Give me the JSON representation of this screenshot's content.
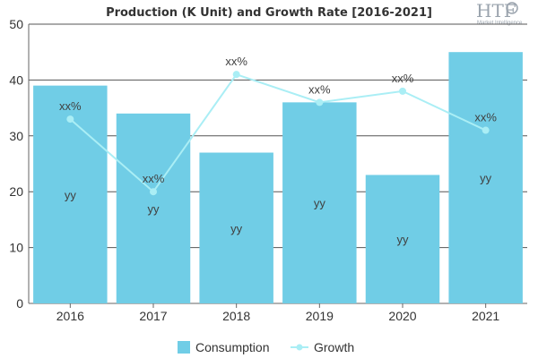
{
  "chart_data": {
    "type": "bar",
    "title": "Production (K Unit) and Growth Rate [2016-2021]",
    "categories": [
      "2016",
      "2017",
      "2018",
      "2019",
      "2020",
      "2021"
    ],
    "ylim": [
      0,
      50
    ],
    "yticks": [
      0,
      10,
      20,
      30,
      40,
      50
    ],
    "grid": true,
    "legend_position": "bottom",
    "series": [
      {
        "name": "Consumption",
        "type": "bar",
        "values": [
          39,
          34,
          27,
          36,
          23,
          45
        ],
        "labels": [
          "yy",
          "yy",
          "yy",
          "yy",
          "yy",
          "yy"
        ],
        "color": "#70cde6"
      },
      {
        "name": "Growth",
        "type": "line",
        "values": [
          33,
          20,
          41,
          36,
          38,
          31
        ],
        "labels": [
          "xx%",
          "xx%",
          "xx%",
          "xx%",
          "xx%",
          "xx%"
        ],
        "color": "#aaeef5"
      }
    ]
  },
  "logo": {
    "text": "HTF",
    "subtext": "Market Intelligence"
  }
}
